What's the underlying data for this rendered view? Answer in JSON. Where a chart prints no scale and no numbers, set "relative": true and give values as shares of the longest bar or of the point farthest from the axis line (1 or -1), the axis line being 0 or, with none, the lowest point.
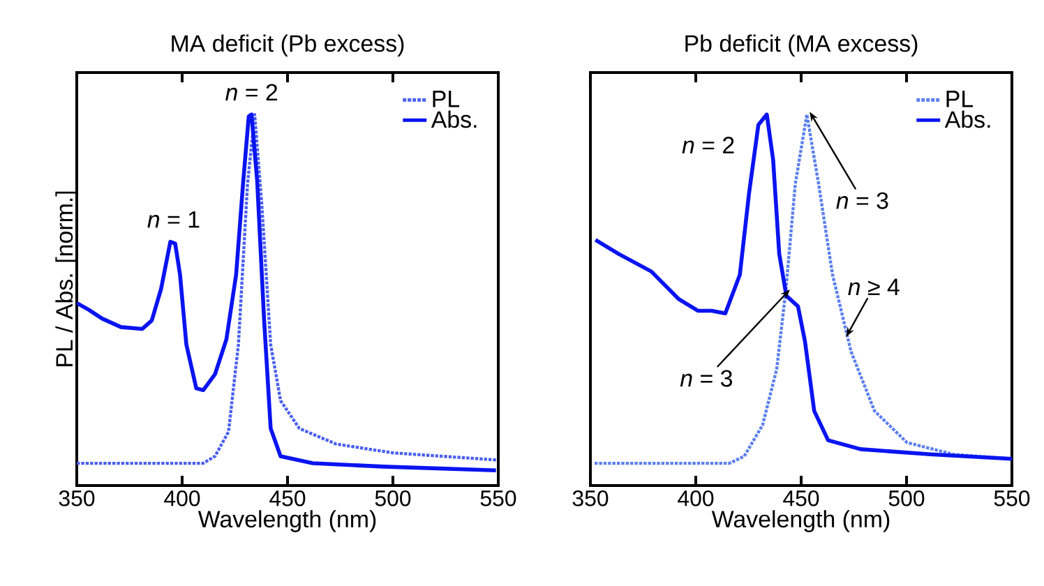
{
  "chart_data": [
    {
      "type": "line",
      "title": "MA deficit (Pb excess)",
      "xlabel": "Wavelength (nm)",
      "ylabel": "PL / Abs. [norm.]",
      "relative": true,
      "xlim": [
        350,
        550
      ],
      "xticks": [
        350,
        400,
        450,
        500,
        550
      ],
      "legend": "top right",
      "grid": false,
      "series": [
        {
          "name": "PL",
          "color": "#4a5ff0",
          "line_style": "dotted",
          "x": [
            350,
            380,
            410,
            415.6,
            422,
            426.7,
            431,
            434.4,
            437.8,
            442,
            446.7,
            455.6,
            473,
            500,
            549
          ],
          "values": [
            0.06,
            0.06,
            0.06,
            0.079,
            0.145,
            0.38,
            0.812,
            1.0,
            0.756,
            0.38,
            0.229,
            0.154,
            0.112,
            0.088,
            0.069
          ]
        },
        {
          "name": "Abs.",
          "color": "#0a14f0",
          "line_style": "solid",
          "x": [
            350,
            355.6,
            362,
            371,
            381,
            385.6,
            390,
            394.4,
            396.7,
            399,
            402,
            406.7,
            410,
            415.6,
            421,
            425.6,
            429,
            431.6,
            432.9,
            435.6,
            438.9,
            442,
            446.7,
            462,
            495.6,
            548.9
          ],
          "values": [
            0.492,
            0.474,
            0.45,
            0.427,
            0.422,
            0.445,
            0.53,
            0.657,
            0.652,
            0.568,
            0.38,
            0.262,
            0.257,
            0.3,
            0.394,
            0.568,
            0.821,
            0.995,
            1.0,
            0.821,
            0.445,
            0.154,
            0.079,
            0.06,
            0.051,
            0.041
          ]
        }
      ],
      "annotations": [
        {
          "text": "*n* = 1",
          "x": 396,
          "y": 0.657
        },
        {
          "text": "*n* = 2",
          "x": 433,
          "y": 1.0
        }
      ]
    },
    {
      "type": "line",
      "title": "Pb deficit (MA excess)",
      "xlabel": "Wavelength (nm)",
      "relative": true,
      "xlim": [
        350,
        550
      ],
      "xticks": [
        350,
        400,
        450,
        500,
        550
      ],
      "legend": "top right",
      "grid": false,
      "series": [
        {
          "name": "PL",
          "color": "#5b7ff0",
          "line_style": "dotted",
          "x": [
            352,
            416,
            423,
            431.7,
            438.4,
            442.8,
            447.2,
            452.7,
            458.3,
            464.9,
            473.7,
            484.8,
            500.2,
            522.3,
            550
          ],
          "values": [
            0.06,
            0.06,
            0.079,
            0.163,
            0.314,
            0.53,
            0.812,
            1.0,
            0.812,
            0.568,
            0.361,
            0.201,
            0.116,
            0.084,
            0.072
          ]
        },
        {
          "name": "Abs.",
          "color": "#0a14f0",
          "line_style": "solid",
          "x": [
            352.4,
            363.5,
            378.9,
            392,
            401,
            407.6,
            414,
            420.9,
            425.3,
            429.7,
            433.7,
            436.7,
            439.6,
            443,
            448.5,
            451.8,
            456.2,
            462.8,
            478.2,
            511.3,
            550
          ],
          "values": [
            0.662,
            0.624,
            0.577,
            0.502,
            0.471,
            0.471,
            0.464,
            0.568,
            0.789,
            0.972,
            1.0,
            0.878,
            0.624,
            0.511,
            0.483,
            0.389,
            0.201,
            0.122,
            0.098,
            0.084,
            0.072
          ]
        }
      ],
      "annotations": [
        {
          "text": "*n* = 2",
          "x": 433.7,
          "y": 1.0
        },
        {
          "text": "*n* = 3",
          "x": 452.7,
          "y": 1.0
        },
        {
          "text": "*n* = 3",
          "x": 446,
          "y": 0.521
        },
        {
          "text": "*n* ≥ 4",
          "x": 470,
          "y": 0.408
        }
      ]
    }
  ]
}
